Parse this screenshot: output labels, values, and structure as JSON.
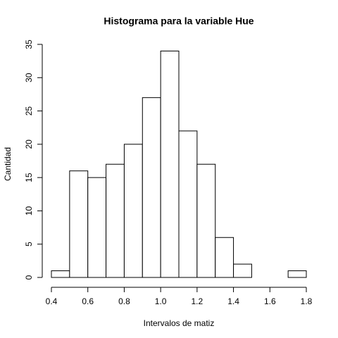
{
  "chart_data": {
    "type": "histogram",
    "title": "Histograma para la variable Hue",
    "x_label": "Intervalos de matiz",
    "y_label": "Cantidad",
    "bins": [
      0.4,
      0.5,
      0.6,
      0.7,
      0.8,
      0.9,
      1.0,
      1.1,
      1.2,
      1.3,
      1.4,
      1.5,
      1.6,
      1.7,
      1.8
    ],
    "values": [
      1,
      16,
      15,
      17,
      20,
      27,
      34,
      22,
      17,
      6,
      2,
      0,
      0,
      1
    ],
    "color": "#ffffff",
    "edge_color": "#000000",
    "xlim": [
      0.4,
      1.8
    ],
    "xticks": [
      0.4,
      0.6,
      0.8,
      {
        "value": 1,
        "label": "1.0"
      },
      1.2,
      1.4,
      1.6,
      1.8
    ],
    "ylim": [
      0,
      35
    ],
    "yticks": [
      0,
      5,
      10,
      15,
      20,
      25,
      30,
      35
    ],
    "grid": false
  }
}
